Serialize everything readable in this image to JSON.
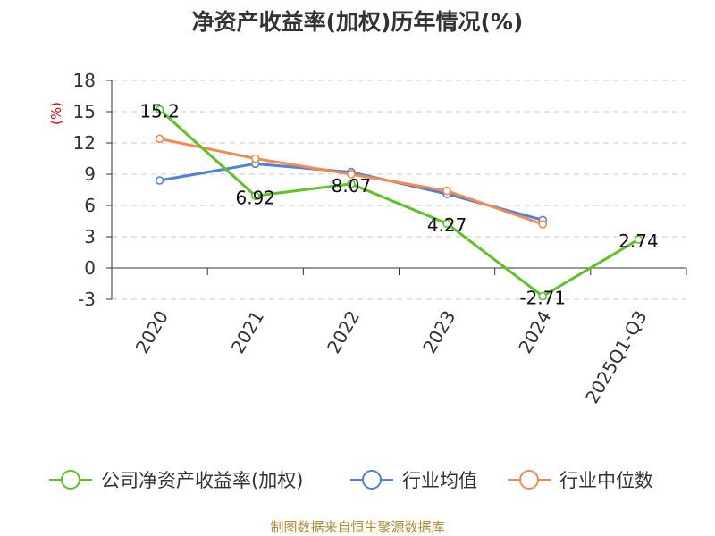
{
  "chart_data": {
    "type": "line",
    "title": "净资产收益率(加权)历年情况(%)",
    "ylabel": "(%)",
    "xlabel": "",
    "categories": [
      "2020",
      "2021",
      "2022",
      "2023",
      "2024",
      "2025Q1-Q3"
    ],
    "yticks": [
      "-3",
      "0",
      "3",
      "6",
      "9",
      "12",
      "15",
      "18"
    ],
    "ylim": [
      -3,
      18
    ],
    "grid": true,
    "series": [
      {
        "name": "公司净资产收益率(加权)",
        "color": "#5cc226",
        "values": [
          15.2,
          6.92,
          8.07,
          4.27,
          -2.71,
          2.74
        ],
        "labels": [
          "15.2",
          "6.92",
          "8.07",
          "4.27",
          "-2.71",
          "2.74"
        ]
      },
      {
        "name": "行业均值",
        "color": "#4f81d6",
        "values": [
          8.4,
          10.0,
          9.2,
          7.1,
          4.6,
          null
        ]
      },
      {
        "name": "行业中位数",
        "color": "#f5894e",
        "values": [
          12.4,
          10.5,
          9.0,
          7.4,
          4.2,
          null
        ]
      }
    ],
    "legend_position": "bottom",
    "source": "制图数据来自恒生聚源数据库"
  }
}
